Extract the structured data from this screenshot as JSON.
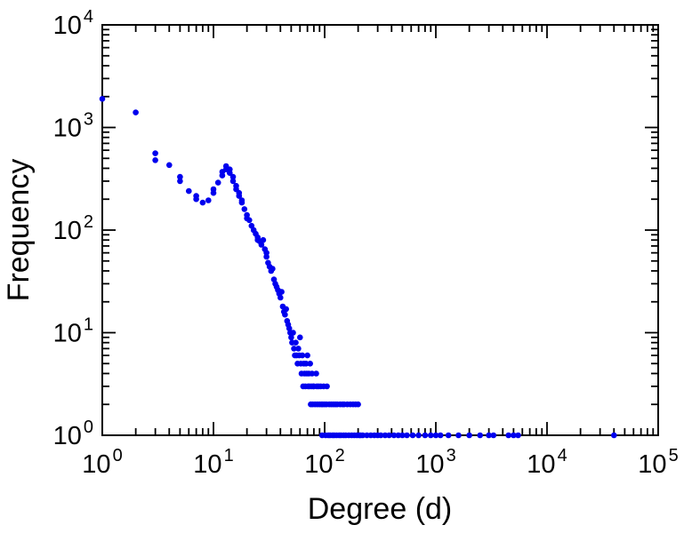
{
  "figure": {
    "background": "#ffffff",
    "frame_color": "#000000",
    "text_color": "#000000"
  },
  "chart_data": {
    "type": "scatter",
    "title": "",
    "xlabel": "Degree (d)",
    "ylabel": "Frequency",
    "x_scale": "log",
    "y_scale": "log",
    "xlim_exp": [
      0,
      5
    ],
    "ylim_exp": [
      0,
      4
    ],
    "tick_base": "10",
    "x_tick_exponents": [
      0,
      1,
      2,
      3,
      4,
      5
    ],
    "y_tick_exponents": [
      0,
      1,
      2,
      3,
      4
    ],
    "legend": "none",
    "grid": false,
    "dot_color": "#0000ee",
    "points": [
      [
        1,
        1900
      ],
      [
        2,
        1400
      ],
      [
        3,
        560
      ],
      [
        3,
        480
      ],
      [
        4,
        430
      ],
      [
        5,
        330
      ],
      [
        5,
        300
      ],
      [
        6,
        240
      ],
      [
        7,
        215
      ],
      [
        7,
        200
      ],
      [
        8,
        185
      ],
      [
        9,
        195
      ],
      [
        10,
        250
      ],
      [
        10,
        230
      ],
      [
        11,
        290
      ],
      [
        12,
        370
      ],
      [
        12,
        340
      ],
      [
        13,
        420
      ],
      [
        13,
        390
      ],
      [
        14,
        390
      ],
      [
        14,
        360
      ],
      [
        15,
        330
      ],
      [
        15,
        300
      ],
      [
        16,
        270
      ],
      [
        16,
        250
      ],
      [
        17,
        230
      ],
      [
        17,
        215
      ],
      [
        18,
        195
      ],
      [
        18,
        185
      ],
      [
        19,
        160
      ],
      [
        20,
        140
      ],
      [
        20,
        130
      ],
      [
        21,
        125
      ],
      [
        22,
        110
      ],
      [
        23,
        100
      ],
      [
        24,
        92
      ],
      [
        25,
        85
      ],
      [
        25,
        80
      ],
      [
        26,
        78
      ],
      [
        27,
        72
      ],
      [
        28,
        80
      ],
      [
        29,
        65
      ],
      [
        30,
        60
      ],
      [
        30,
        55
      ],
      [
        31,
        48
      ],
      [
        32,
        44
      ],
      [
        33,
        40
      ],
      [
        34,
        42
      ],
      [
        35,
        33
      ],
      [
        36,
        30
      ],
      [
        37,
        28
      ],
      [
        38,
        26
      ],
      [
        39,
        24
      ],
      [
        40,
        22
      ],
      [
        41,
        25
      ],
      [
        42,
        18
      ],
      [
        43,
        16
      ],
      [
        44,
        15
      ],
      [
        45,
        17
      ],
      [
        46,
        13
      ],
      [
        47,
        12
      ],
      [
        48,
        11
      ],
      [
        49,
        10
      ],
      [
        50,
        9
      ],
      [
        51,
        8
      ],
      [
        52,
        10
      ],
      [
        53,
        7
      ],
      [
        54,
        6
      ],
      [
        55,
        8
      ],
      [
        56,
        6
      ],
      [
        57,
        5
      ],
      [
        58,
        7
      ],
      [
        59,
        6
      ],
      [
        60,
        9
      ],
      [
        61,
        5
      ],
      [
        62,
        4
      ],
      [
        63,
        6
      ],
      [
        64,
        3
      ],
      [
        65,
        5
      ],
      [
        66,
        4
      ],
      [
        67,
        3
      ],
      [
        68,
        5
      ],
      [
        69,
        4
      ],
      [
        70,
        6
      ],
      [
        71,
        3
      ],
      [
        72,
        4
      ],
      [
        73,
        3
      ],
      [
        74,
        5
      ],
      [
        75,
        2
      ],
      [
        76,
        3
      ],
      [
        77,
        4
      ],
      [
        78,
        2
      ],
      [
        79,
        3
      ],
      [
        80,
        3
      ],
      [
        82,
        2
      ],
      [
        84,
        4
      ],
      [
        85,
        3
      ],
      [
        86,
        2
      ],
      [
        88,
        3
      ],
      [
        90,
        2
      ],
      [
        92,
        3
      ],
      [
        94,
        2
      ],
      [
        95,
        1
      ],
      [
        96,
        2
      ],
      [
        98,
        3
      ],
      [
        100,
        2
      ],
      [
        102,
        1
      ],
      [
        104,
        2
      ],
      [
        105,
        3
      ],
      [
        108,
        1
      ],
      [
        110,
        2
      ],
      [
        112,
        1
      ],
      [
        115,
        2
      ],
      [
        118,
        1
      ],
      [
        120,
        2
      ],
      [
        122,
        1
      ],
      [
        125,
        2
      ],
      [
        128,
        1
      ],
      [
        130,
        2
      ],
      [
        135,
        1
      ],
      [
        138,
        2
      ],
      [
        140,
        1
      ],
      [
        145,
        2
      ],
      [
        148,
        1
      ],
      [
        150,
        2
      ],
      [
        155,
        1
      ],
      [
        160,
        2
      ],
      [
        165,
        1
      ],
      [
        170,
        2
      ],
      [
        175,
        1
      ],
      [
        180,
        2
      ],
      [
        185,
        1
      ],
      [
        190,
        2
      ],
      [
        195,
        1
      ],
      [
        200,
        2
      ],
      [
        205,
        1
      ],
      [
        210,
        1
      ],
      [
        220,
        1
      ],
      [
        240,
        1
      ],
      [
        260,
        1
      ],
      [
        280,
        1
      ],
      [
        300,
        1
      ],
      [
        320,
        1
      ],
      [
        350,
        1
      ],
      [
        380,
        1
      ],
      [
        420,
        1
      ],
      [
        460,
        1
      ],
      [
        500,
        1
      ],
      [
        550,
        1
      ],
      [
        620,
        1
      ],
      [
        700,
        1
      ],
      [
        800,
        1
      ],
      [
        900,
        1
      ],
      [
        1000,
        1
      ],
      [
        1100,
        1
      ],
      [
        1300,
        1
      ],
      [
        1600,
        1
      ],
      [
        2000,
        1
      ],
      [
        2500,
        1
      ],
      [
        3000,
        1
      ],
      [
        3300,
        1
      ],
      [
        4500,
        1
      ],
      [
        5000,
        1
      ],
      [
        5500,
        1
      ],
      [
        40000,
        1
      ]
    ]
  }
}
